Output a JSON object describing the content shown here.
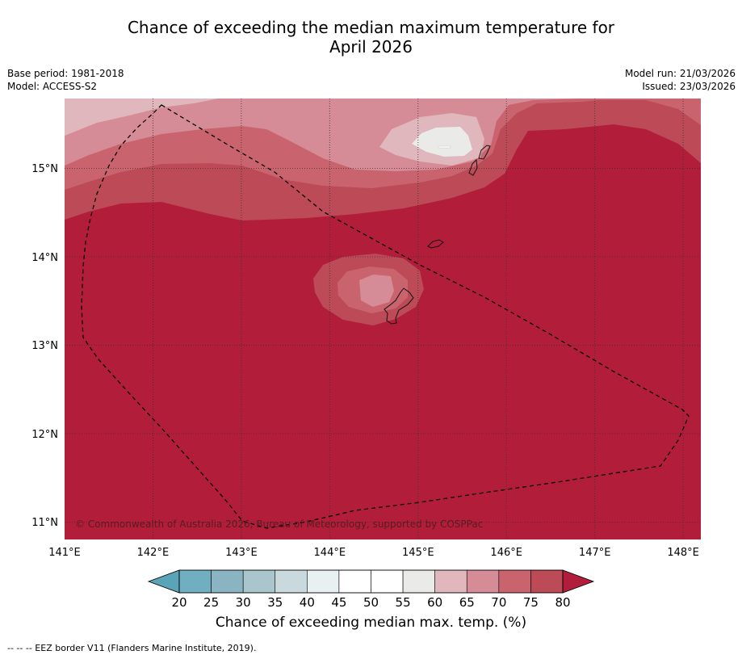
{
  "title": {
    "line1": "Chance of exceeding the median maximum temperature for",
    "line2": "April 2026"
  },
  "info": {
    "base_period": "Base period: 1981-2018",
    "model": "Model: ACCESS-S2",
    "model_run": "Model run: 21/03/2026",
    "issued": "Issued: 23/03/2026"
  },
  "map": {
    "copyright": "© Commonwealth of Australia 2026, Bureau of Meteorology, supported by COSPPac",
    "x_ticks": [
      "141°E",
      "142°E",
      "143°E",
      "144°E",
      "145°E",
      "146°E",
      "147°E",
      "148°E"
    ],
    "y_ticks": [
      "15°N",
      "14°N",
      "13°N",
      "12°N",
      "11°N"
    ],
    "lon_range": [
      141.0,
      148.2
    ],
    "lat_range": [
      10.8,
      15.8
    ]
  },
  "colorbar": {
    "levels": [
      "20",
      "25",
      "30",
      "35",
      "40",
      "45",
      "50",
      "55",
      "60",
      "65",
      "70",
      "75",
      "80"
    ],
    "colors": [
      "#5ba3b6",
      "#6fafc0",
      "#8ab4c2",
      "#a8c6cb",
      "#cad9dd",
      "#e8f0f1",
      "#ffffff",
      "#ffffff",
      "#eaeae8",
      "#e0b7bd",
      "#d68c96",
      "#c9646f",
      "#bd4a57",
      "#b21e3a"
    ],
    "label": "Chance of exceeding median max. temp. (%)"
  },
  "footnote": "--  --  -- EEZ border V11 (Flanders Marine Institute, 2019)."
}
